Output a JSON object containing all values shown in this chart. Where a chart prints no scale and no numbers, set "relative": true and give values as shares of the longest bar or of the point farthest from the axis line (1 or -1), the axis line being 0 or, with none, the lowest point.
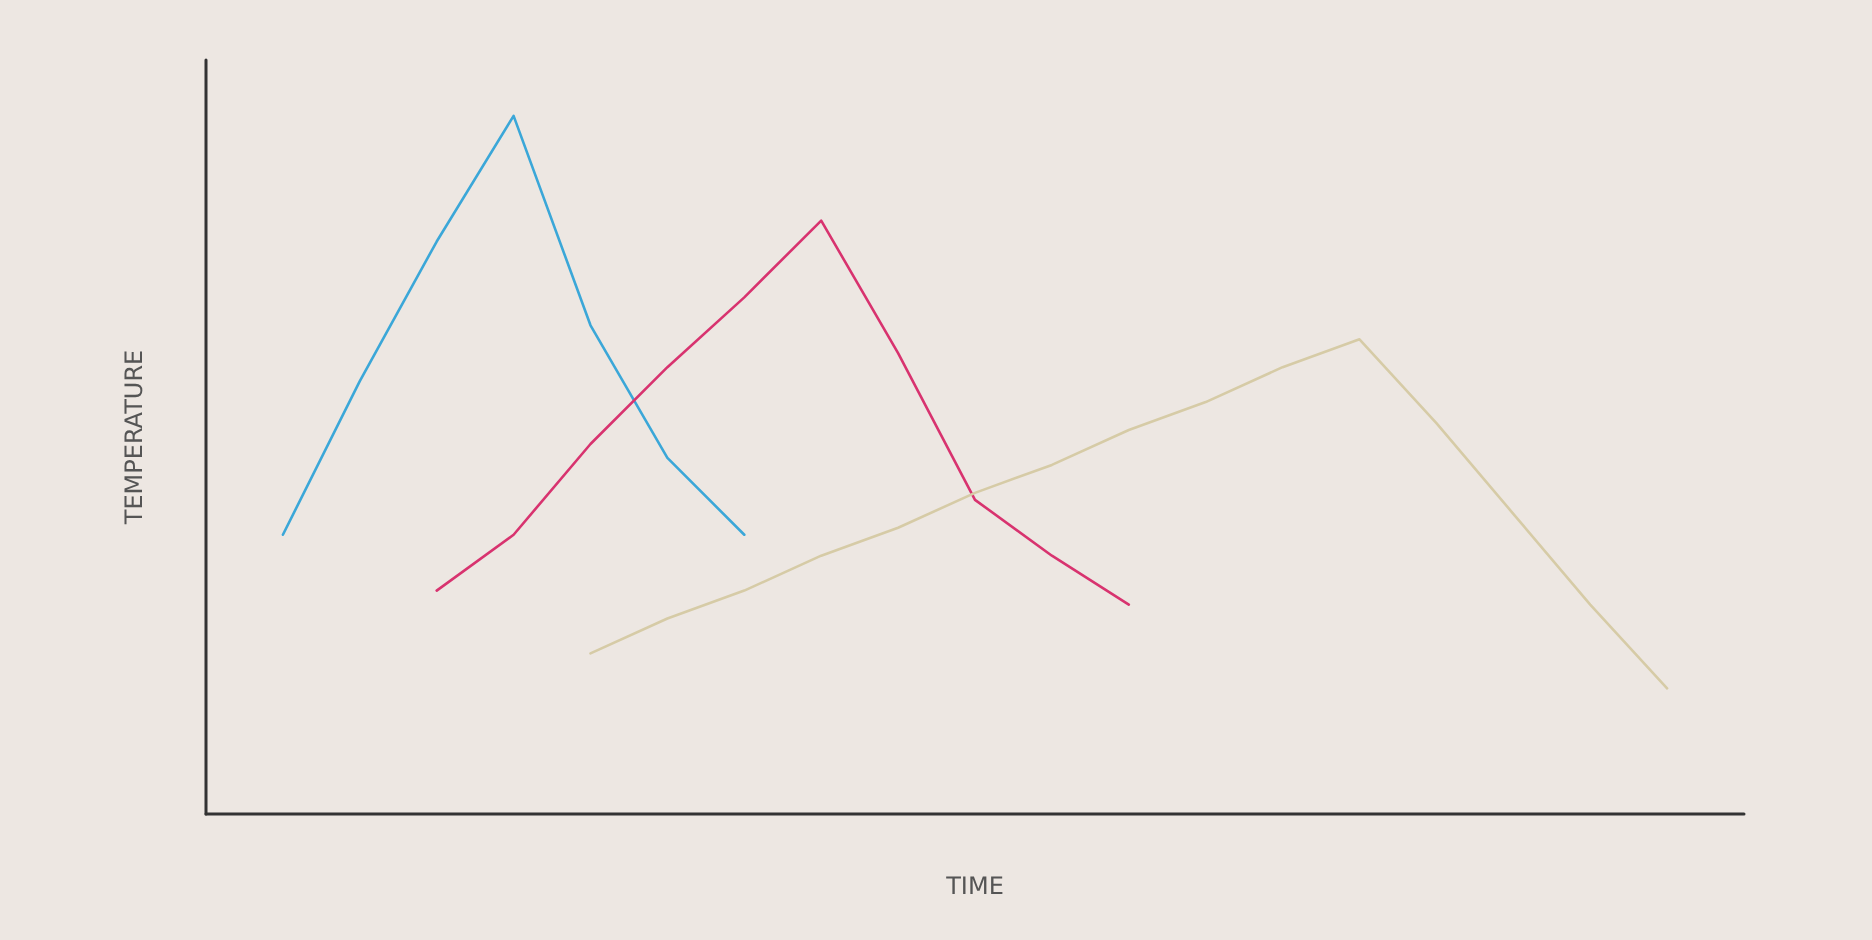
{
  "chart_data": {
    "type": "line",
    "relative": true,
    "xlabel": "TIME",
    "ylabel": "TEMPERATURE",
    "marker": "none",
    "line_style": "solid",
    "categories": [
      null,
      null,
      null,
      null,
      null,
      null,
      null,
      null,
      null,
      null,
      null,
      null,
      null,
      null,
      null,
      null,
      null,
      null,
      null,
      null,
      null
    ],
    "series": [
      {
        "color": "#3ba7d8",
        "values": [
          null,
          0.4,
          0.62,
          0.82,
          1,
          0.7,
          0.51,
          0.4,
          null,
          null,
          null,
          null,
          null,
          null,
          null,
          null,
          null,
          null,
          null,
          null,
          null
        ]
      },
      {
        "color": "#d8336f",
        "values": [
          null,
          null,
          null,
          0.32,
          0.4,
          0.53,
          0.64,
          0.74,
          0.85,
          0.66,
          0.45,
          0.37,
          0.3,
          null,
          null,
          null,
          null,
          null,
          null,
          null,
          null
        ]
      },
      {
        "color": "#d6cba6",
        "values": [
          null,
          null,
          null,
          null,
          null,
          0.23,
          0.28,
          0.32,
          0.37,
          0.41,
          0.46,
          0.5,
          0.55,
          0.59,
          0.64,
          0.68,
          0.56,
          0.43,
          0.3,
          0.18,
          null
        ]
      }
    ]
  }
}
